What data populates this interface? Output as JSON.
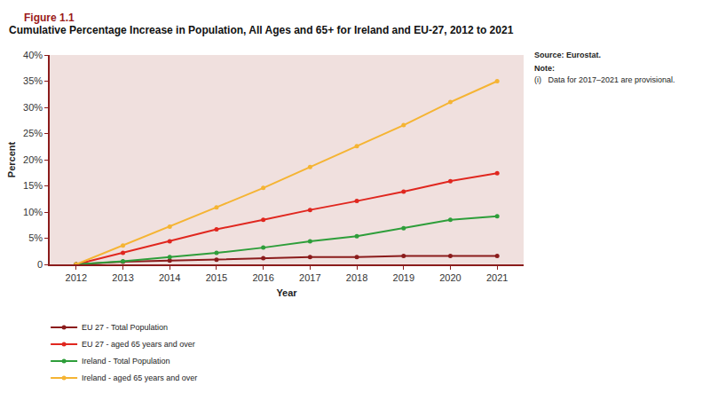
{
  "chart_data": {
    "type": "line",
    "title": "Cumulative Percentage Increase in Population, All Ages and 65+ for Ireland and EU-27, 2012 to 2021",
    "annotations": [
      "Figure 1.1",
      "Source: Eurostat.",
      "Note:",
      "(i)   Data for 2017–2021 are provisional."
    ],
    "x_label": "Year",
    "y_label": "Percent",
    "categories": [
      "2012",
      "2013",
      "2014",
      "2015",
      "2016",
      "2017",
      "2018",
      "2019",
      "2020",
      "2021"
    ],
    "series": [
      {
        "name": "EU 27 - Total Population",
        "color": "#8b1c1c",
        "values": [
          0,
          0.5,
          0.7,
          0.9,
          1.2,
          1.4,
          1.4,
          1.6,
          1.6,
          1.6
        ]
      },
      {
        "name": "EU 27 - aged 65 years and over",
        "color": "#e0271f",
        "values": [
          0,
          2.2,
          4.4,
          6.7,
          8.5,
          10.4,
          12.1,
          13.9,
          15.9,
          17.4
        ]
      },
      {
        "name": "Ireland - Total Population",
        "color": "#2e9e3a",
        "values": [
          0,
          0.6,
          1.4,
          2.2,
          3.2,
          4.4,
          5.4,
          6.9,
          8.5,
          9.2
        ]
      },
      {
        "name": "Ireland - aged 65 years and over",
        "color": "#f5b433",
        "values": [
          0,
          3.6,
          7.2,
          10.9,
          14.6,
          18.6,
          22.6,
          26.6,
          31.0,
          35.0
        ]
      }
    ],
    "ylim": [
      0,
      40
    ],
    "yticks": [
      0,
      {
        "value": 5,
        "label": "5%"
      },
      {
        "value": 10,
        "label": "10%"
      },
      {
        "value": 15,
        "label": "15%"
      },
      {
        "value": 20,
        "label": "20%"
      },
      {
        "value": 25,
        "label": "25%"
      },
      {
        "value": 30,
        "label": "30%"
      },
      {
        "value": 35,
        "label": "35%"
      },
      {
        "value": 40,
        "label": "40%"
      }
    ],
    "grid": false,
    "legend": "bottom left",
    "marker": "circle",
    "line_style": "solid"
  }
}
